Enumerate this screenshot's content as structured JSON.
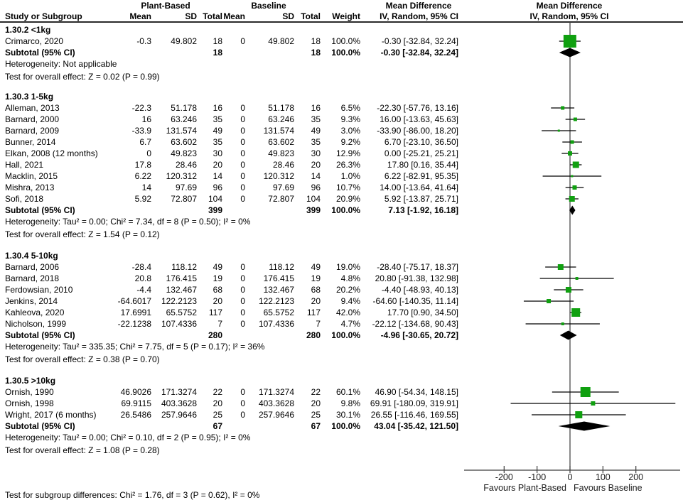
{
  "header": {
    "study_col": "Study or Subgroup",
    "group1": "Plant-Based",
    "group2": "Baseline",
    "mean1": "Mean",
    "sd1": "SD",
    "total1": "Total",
    "mean2": "Mean",
    "sd2": "SD",
    "total2": "Total",
    "weight": "Weight",
    "md_title": "Mean Difference",
    "md_subtitle": "IV, Random, 95% CI",
    "plot_title": "Mean Difference",
    "plot_subtitle": "IV, Random, 95% CI"
  },
  "footer": {
    "subgroup_test": "Test for subgroup differences: Chi² = 1.76, df = 3 (P = 0.62), I² = 0%"
  },
  "colors": {
    "marker_green": "#10A010",
    "diamond_black": "#000000",
    "axis_gray": "#3d3d3d"
  },
  "chart_data": {
    "type": "forest",
    "effect_measure": "Mean Difference",
    "model": "IV, Random, 95% CI",
    "axis": {
      "ticks": [
        -200,
        -100,
        0,
        100,
        200
      ],
      "xlim": [
        -320,
        335
      ],
      "favours_left": "Favours Plant-Based",
      "favours_right": "Favours Baseline"
    },
    "subgroups": [
      {
        "label": "1.30.2 <1kg",
        "studies": [
          {
            "study": "Crimarco, 2020",
            "mean1": "-0.3",
            "sd1": "49.802",
            "total1": "18",
            "mean2": "0",
            "sd2": "49.802",
            "total2": "18",
            "weight": "100.0%",
            "weight_value": 100.0,
            "ci_text": "-0.30 [-32.84, 32.24]",
            "md": -0.3,
            "ci_low": -32.84,
            "ci_high": 32.24
          }
        ],
        "subtotal": {
          "label": "Subtotal (95% CI)",
          "total1": "18",
          "total2": "18",
          "weight": "100.0%",
          "ci_text": "-0.30 [-32.84, 32.24]",
          "md": -0.3,
          "ci_low": -32.84,
          "ci_high": 32.24
        },
        "heterogeneity": "Heterogeneity: Not applicable",
        "overall_test": "Test for overall effect: Z = 0.02 (P = 0.99)"
      },
      {
        "label": "1.30.3 1-5kg",
        "studies": [
          {
            "study": "Alleman, 2013",
            "mean1": "-22.3",
            "sd1": "51.178",
            "total1": "16",
            "mean2": "0",
            "sd2": "51.178",
            "total2": "16",
            "weight": "6.5%",
            "weight_value": 6.5,
            "ci_text": "-22.30 [-57.76, 13.16]",
            "md": -22.3,
            "ci_low": -57.76,
            "ci_high": 13.16
          },
          {
            "study": "Barnard, 2000",
            "mean1": "16",
            "sd1": "63.246",
            "total1": "35",
            "mean2": "0",
            "sd2": "63.246",
            "total2": "35",
            "weight": "9.3%",
            "weight_value": 9.3,
            "ci_text": "16.00 [-13.63, 45.63]",
            "md": 16.0,
            "ci_low": -13.63,
            "ci_high": 45.63
          },
          {
            "study": "Barnard, 2009",
            "mean1": "-33.9",
            "sd1": "131.574",
            "total1": "49",
            "mean2": "0",
            "sd2": "131.574",
            "total2": "49",
            "weight": "3.0%",
            "weight_value": 3.0,
            "ci_text": "-33.90 [-86.00, 18.20]",
            "md": -33.9,
            "ci_low": -86.0,
            "ci_high": 18.2
          },
          {
            "study": "Bunner, 2014",
            "mean1": "6.7",
            "sd1": "63.602",
            "total1": "35",
            "mean2": "0",
            "sd2": "63.602",
            "total2": "35",
            "weight": "9.2%",
            "weight_value": 9.2,
            "ci_text": "6.70 [-23.10, 36.50]",
            "md": 6.7,
            "ci_low": -23.1,
            "ci_high": 36.5
          },
          {
            "study": "Elkan, 2008 (12 months)",
            "mean1": "0",
            "sd1": "49.823",
            "total1": "30",
            "mean2": "0",
            "sd2": "49.823",
            "total2": "30",
            "weight": "12.9%",
            "weight_value": 12.9,
            "ci_text": "0.00 [-25.21, 25.21]",
            "md": 0.0,
            "ci_low": -25.21,
            "ci_high": 25.21
          },
          {
            "study": "Hall, 2021",
            "mean1": "17.8",
            "sd1": "28.46",
            "total1": "20",
            "mean2": "0",
            "sd2": "28.46",
            "total2": "20",
            "weight": "26.3%",
            "weight_value": 26.3,
            "ci_text": "17.80 [0.16, 35.44]",
            "md": 17.8,
            "ci_low": 0.16,
            "ci_high": 35.44
          },
          {
            "study": "Macklin, 2015",
            "mean1": "6.22",
            "sd1": "120.312",
            "total1": "14",
            "mean2": "0",
            "sd2": "120.312",
            "total2": "14",
            "weight": "1.0%",
            "weight_value": 1.0,
            "ci_text": "6.22 [-82.91, 95.35]",
            "md": 6.22,
            "ci_low": -82.91,
            "ci_high": 95.35
          },
          {
            "study": "Mishra, 2013",
            "mean1": "14",
            "sd1": "97.69",
            "total1": "96",
            "mean2": "0",
            "sd2": "97.69",
            "total2": "96",
            "weight": "10.7%",
            "weight_value": 10.7,
            "ci_text": "14.00 [-13.64, 41.64]",
            "md": 14.0,
            "ci_low": -13.64,
            "ci_high": 41.64
          },
          {
            "study": "Sofi, 2018",
            "mean1": "5.92",
            "sd1": "72.807",
            "total1": "104",
            "mean2": "0",
            "sd2": "72.807",
            "total2": "104",
            "weight": "20.9%",
            "weight_value": 20.9,
            "ci_text": "5.92 [-13.87, 25.71]",
            "md": 5.92,
            "ci_low": -13.87,
            "ci_high": 25.71
          }
        ],
        "subtotal": {
          "label": "Subtotal (95% CI)",
          "total1": "399",
          "total2": "399",
          "weight": "100.0%",
          "ci_text": "7.13 [-1.92, 16.18]",
          "md": 7.13,
          "ci_low": -1.92,
          "ci_high": 16.18
        },
        "heterogeneity": "Heterogeneity: Tau² = 0.00; Chi² = 7.34, df = 8 (P = 0.50); I² = 0%",
        "overall_test": "Test for overall effect: Z = 1.54 (P = 0.12)"
      },
      {
        "label": "1.30.4 5-10kg",
        "studies": [
          {
            "study": "Barnard, 2006",
            "mean1": "-28.4",
            "sd1": "118.12",
            "total1": "49",
            "mean2": "0",
            "sd2": "118.12",
            "total2": "49",
            "weight": "19.0%",
            "weight_value": 19.0,
            "ci_text": "-28.40 [-75.17, 18.37]",
            "md": -28.4,
            "ci_low": -75.17,
            "ci_high": 18.37
          },
          {
            "study": "Barnard, 2018",
            "mean1": "20.8",
            "sd1": "176.415",
            "total1": "19",
            "mean2": "0",
            "sd2": "176.415",
            "total2": "19",
            "weight": "4.8%",
            "weight_value": 4.8,
            "ci_text": "20.80 [-91.38, 132.98]",
            "md": 20.8,
            "ci_low": -91.38,
            "ci_high": 132.98
          },
          {
            "study": "Ferdowsian, 2010",
            "mean1": "-4.4",
            "sd1": "132.467",
            "total1": "68",
            "mean2": "0",
            "sd2": "132.467",
            "total2": "68",
            "weight": "20.2%",
            "weight_value": 20.2,
            "ci_text": "-4.40 [-48.93, 40.13]",
            "md": -4.4,
            "ci_low": -48.93,
            "ci_high": 40.13
          },
          {
            "study": "Jenkins, 2014",
            "mean1": "-64.6017",
            "sd1": "122.2123",
            "total1": "20",
            "mean2": "0",
            "sd2": "122.2123",
            "total2": "20",
            "weight": "9.4%",
            "weight_value": 9.4,
            "ci_text": "-64.60 [-140.35, 11.14]",
            "md": -64.6,
            "ci_low": -140.35,
            "ci_high": 11.14
          },
          {
            "study": "Kahleova, 2020",
            "mean1": "17.6991",
            "sd1": "65.5752",
            "total1": "117",
            "mean2": "0",
            "sd2": "65.5752",
            "total2": "117",
            "weight": "42.0%",
            "weight_value": 42.0,
            "ci_text": "17.70 [0.90, 34.50]",
            "md": 17.7,
            "ci_low": 0.9,
            "ci_high": 34.5
          },
          {
            "study": "Nicholson, 1999",
            "mean1": "-22.1238",
            "sd1": "107.4336",
            "total1": "7",
            "mean2": "0",
            "sd2": "107.4336",
            "total2": "7",
            "weight": "4.7%",
            "weight_value": 4.7,
            "ci_text": "-22.12 [-134.68, 90.43]",
            "md": -22.12,
            "ci_low": -134.68,
            "ci_high": 90.43
          }
        ],
        "subtotal": {
          "label": "Subtotal (95% CI)",
          "total1": "280",
          "total2": "280",
          "weight": "100.0%",
          "ci_text": "-4.96 [-30.65, 20.72]",
          "md": -4.96,
          "ci_low": -30.65,
          "ci_high": 20.72
        },
        "heterogeneity": "Heterogeneity: Tau² = 335.35; Chi² = 7.75, df = 5 (P = 0.17); I² = 36%",
        "overall_test": "Test for overall effect: Z = 0.38 (P = 0.70)"
      },
      {
        "label": "1.30.5 >10kg",
        "studies": [
          {
            "study": "Ornish, 1990",
            "mean1": "46.9026",
            "sd1": "171.3274",
            "total1": "22",
            "mean2": "0",
            "sd2": "171.3274",
            "total2": "22",
            "weight": "60.1%",
            "weight_value": 60.1,
            "ci_text": "46.90 [-54.34, 148.15]",
            "md": 46.9,
            "ci_low": -54.34,
            "ci_high": 148.15
          },
          {
            "study": "Ornish, 1998",
            "mean1": "69.9115",
            "sd1": "403.3628",
            "total1": "20",
            "mean2": "0",
            "sd2": "403.3628",
            "total2": "20",
            "weight": "9.8%",
            "weight_value": 9.8,
            "ci_text": "69.91 [-180.09, 319.91]",
            "md": 69.91,
            "ci_low": -180.09,
            "ci_high": 319.91
          },
          {
            "study": "Wright, 2017 (6 months)",
            "mean1": "26.5486",
            "sd1": "257.9646",
            "total1": "25",
            "mean2": "0",
            "sd2": "257.9646",
            "total2": "25",
            "weight": "30.1%",
            "weight_value": 30.1,
            "ci_text": "26.55 [-116.46, 169.55]",
            "md": 26.55,
            "ci_low": -116.46,
            "ci_high": 169.55
          }
        ],
        "subtotal": {
          "label": "Subtotal (95% CI)",
          "total1": "67",
          "total2": "67",
          "weight": "100.0%",
          "ci_text": "43.04 [-35.42, 121.50]",
          "md": 43.04,
          "ci_low": -35.42,
          "ci_high": 121.5
        },
        "heterogeneity": "Heterogeneity: Tau² = 0.00; Chi² = 0.10, df = 2 (P = 0.95); I² = 0%",
        "overall_test": "Test for overall effect: Z = 1.08 (P = 0.28)"
      }
    ]
  }
}
